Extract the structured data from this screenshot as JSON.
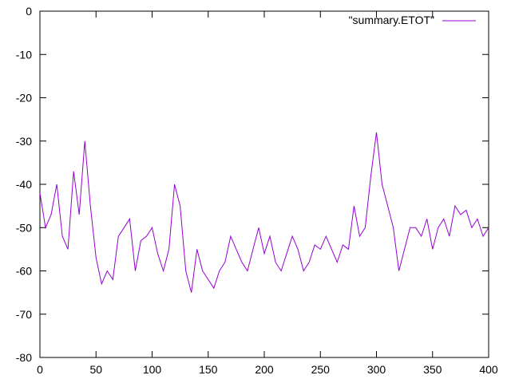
{
  "chart_data": {
    "type": "line",
    "title": "",
    "xlabel": "",
    "ylabel": "",
    "xlim": [
      0,
      400
    ],
    "ylim": [
      -80,
      0
    ],
    "x_ticks": [
      0,
      50,
      100,
      150,
      200,
      250,
      300,
      350,
      400
    ],
    "y_ticks": [
      0,
      -10,
      -20,
      -30,
      -40,
      -50,
      -60,
      -70,
      -80
    ],
    "grid": false,
    "legend_position": "top-right",
    "series": [
      {
        "name": "\"summary.ETOT\"",
        "color": "#9400d3",
        "x": [
          0,
          5,
          10,
          15,
          20,
          25,
          30,
          35,
          40,
          45,
          50,
          55,
          60,
          65,
          70,
          75,
          80,
          85,
          90,
          95,
          100,
          105,
          110,
          115,
          120,
          125,
          130,
          135,
          140,
          145,
          150,
          155,
          160,
          165,
          170,
          175,
          180,
          185,
          190,
          195,
          200,
          205,
          210,
          215,
          220,
          225,
          230,
          235,
          240,
          245,
          250,
          255,
          260,
          265,
          270,
          275,
          280,
          285,
          290,
          295,
          300,
          305,
          310,
          315,
          320,
          325,
          330,
          335,
          340,
          345,
          350,
          355,
          360,
          365,
          370,
          375,
          380,
          385,
          390,
          395,
          400
        ],
        "values": [
          -42,
          -50,
          -47,
          -40,
          -52,
          -55,
          -37,
          -47,
          -30,
          -45,
          -57,
          -63,
          -60,
          -62,
          -52,
          -50,
          -48,
          -60,
          -53,
          -52,
          -50,
          -56,
          -60,
          -55,
          -40,
          -45,
          -60,
          -65,
          -55,
          -60,
          -62,
          -64,
          -60,
          -58,
          -52,
          -55,
          -58,
          -60,
          -55,
          -50,
          -56,
          -52,
          -58,
          -60,
          -56,
          -52,
          -55,
          -60,
          -58,
          -54,
          -55,
          -52,
          -55,
          -58,
          -54,
          -55,
          -45,
          -52,
          -50,
          -38,
          -28,
          -40,
          -45,
          -50,
          -60,
          -55,
          -50,
          -50,
          -52,
          -48,
          -55,
          -50,
          -48,
          -52,
          -45,
          -47,
          -46,
          -50,
          -48,
          -52,
          -50
        ]
      }
    ]
  }
}
